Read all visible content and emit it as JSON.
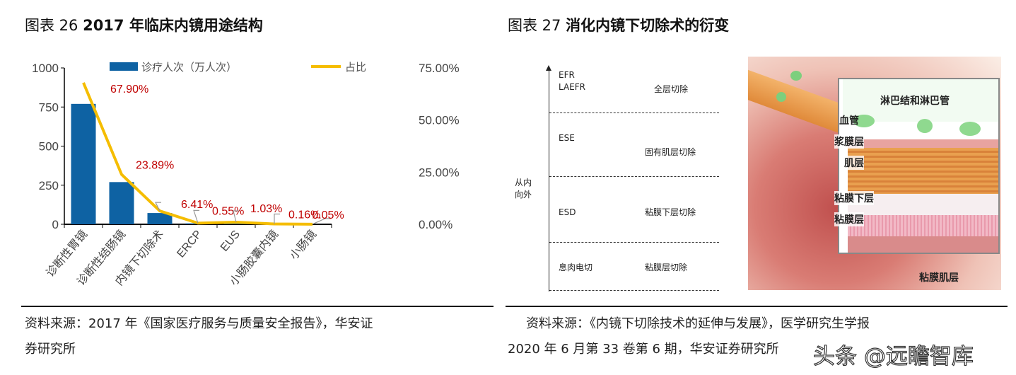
{
  "left_figure": {
    "title_prefix": "图表 26 ",
    "title_main": "2017 年临床内镜用途结构",
    "source_line1": "资料来源：2017 年《国家医疗服务与质量安全报告》，华安证",
    "source_line2": "券研究所"
  },
  "right_figure": {
    "title_prefix": "图表 27 ",
    "title_main": "消化内镜下切除术的衍变",
    "axis_label_1": "从内",
    "axis_label_2": "向外",
    "rows": [
      {
        "method": "EFR",
        "method2": "LAEFR",
        "scope": "全层切除"
      },
      {
        "method": "ESE",
        "method2": "",
        "scope": "固有肌层切除"
      },
      {
        "method": "ESD",
        "method2": "",
        "scope": "粘膜下层切除"
      },
      {
        "method": "息肉电切",
        "method2": "",
        "scope": "粘膜层切除"
      }
    ],
    "illustration_labels": [
      "淋巴结和淋巴管",
      "血管",
      "浆膜层",
      "肌层",
      "粘膜下层",
      "粘膜层",
      "粘膜肌层"
    ],
    "source_line1": "资料来源：《内镜下切除技术的延伸与发展》，医学研究生学报",
    "source_line2": "2020 年 6 月第 33 卷第 6 期，华安证券研究所"
  },
  "watermark": "头条 @远瞻智库",
  "chart_data": {
    "type": "bar+line",
    "categories": [
      "诊断性胃镜",
      "诊断性结肠镜",
      "内镜下切除术",
      "ERCP",
      "EUS",
      "小肠胶囊内镜",
      "小肠镜"
    ],
    "series": [
      {
        "name": "诊疗人次（万人次）",
        "type": "bar",
        "axis": "left",
        "color": "#0e62a3",
        "values": [
          770,
          270,
          72,
          6,
          11,
          2,
          0.5
        ]
      },
      {
        "name": "占比",
        "type": "line",
        "axis": "right",
        "color": "#f5bd00",
        "values": [
          67.9,
          23.89,
          6.41,
          0.55,
          1.03,
          0.16,
          0.05
        ],
        "labels": [
          "67.90%",
          "23.89%",
          "6.41%",
          "0.55%",
          "1.03%",
          "0.16%",
          "0.05%"
        ],
        "label_color": "#c00000"
      }
    ],
    "y_left": {
      "range": [
        0,
        1000
      ],
      "ticks": [
        "0",
        "250",
        "500",
        "750",
        "1000"
      ]
    },
    "y_right": {
      "range": [
        0,
        75
      ],
      "ticks": [
        "0.00%",
        "25.00%",
        "50.00%",
        "75.00%"
      ]
    },
    "grid": false,
    "legend": "top"
  }
}
